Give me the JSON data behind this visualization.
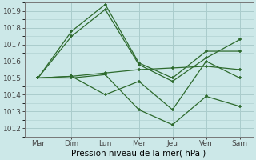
{
  "xlabel": "Pression niveau de la mer( hPa )",
  "days": [
    "Mar",
    "Dim",
    "Lun",
    "Mer",
    "Jeu",
    "Ven",
    "Sam"
  ],
  "x_positions": [
    0,
    1,
    2,
    3,
    4,
    5,
    6
  ],
  "series1": [
    1015.0,
    1017.5,
    1019.1,
    1015.8,
    1014.8,
    1016.2,
    1017.3
  ],
  "series2": [
    1015.0,
    1017.8,
    1019.4,
    1015.9,
    1015.0,
    1016.6,
    1016.6
  ],
  "series3": [
    1015.0,
    1015.1,
    1015.3,
    1015.5,
    1015.6,
    1015.7,
    1015.5
  ],
  "series4": [
    1015.0,
    1015.1,
    1014.0,
    1014.8,
    1013.1,
    1016.0,
    1015.0
  ],
  "series5": [
    1015.0,
    1015.0,
    1015.2,
    1013.1,
    1012.2,
    1013.9,
    1013.3
  ],
  "line_color": "#2d6a2d",
  "bg_color": "#cce8e8",
  "grid_color": "#aacccc",
  "ylim_min": 1011.5,
  "ylim_max": 1019.5,
  "yticks": [
    1012,
    1013,
    1014,
    1015,
    1016,
    1017,
    1018,
    1019
  ],
  "tick_fontsize": 6.5,
  "xlabel_fontsize": 7.5
}
